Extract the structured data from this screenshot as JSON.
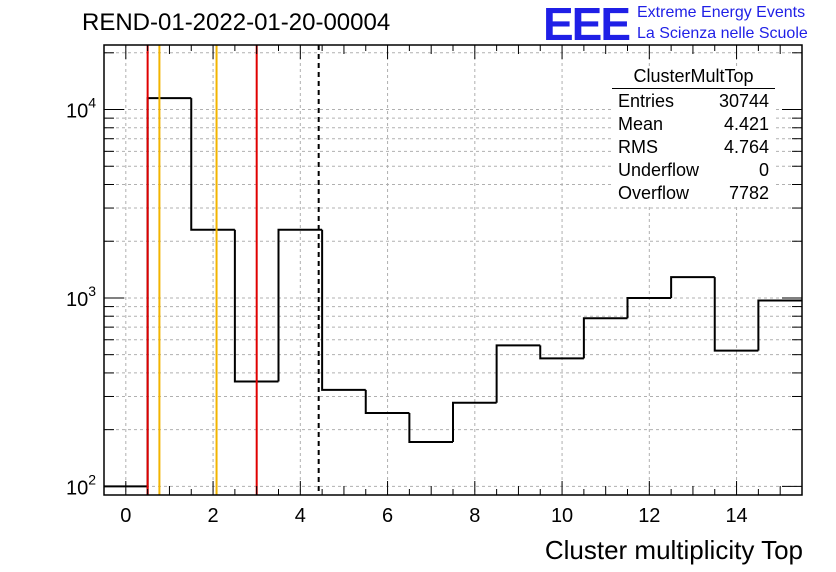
{
  "title": "REND-01-2022-01-20-00004",
  "logo": {
    "text": "EEE",
    "line1": "Extreme Energy Events",
    "line2": "La Scienza nelle Scuole"
  },
  "stats": {
    "name": "ClusterMultTop",
    "rows": [
      {
        "label": "Entries",
        "value": "30744"
      },
      {
        "label": "Mean",
        "value": "4.421"
      },
      {
        "label": "RMS",
        "value": "4.764"
      },
      {
        "label": "Underflow",
        "value": "0"
      },
      {
        "label": "Overflow",
        "value": "7782"
      }
    ]
  },
  "chart_data": {
    "type": "histogram",
    "title": "REND-01-2022-01-20-00004",
    "xlabel": "Cluster multiplicity Top",
    "ylabel": "",
    "xlim": [
      -0.5,
      15.5
    ],
    "ylim": [
      90,
      22000
    ],
    "y_scale": "log",
    "grid": true,
    "x_ticks": [
      "0",
      "2",
      "4",
      "6",
      "8",
      "10",
      "12",
      "14"
    ],
    "y_ticks": [
      {
        "value": 100,
        "base": "10",
        "exp": "2"
      },
      {
        "value": 1000,
        "base": "10",
        "exp": "3"
      },
      {
        "value": 10000,
        "base": "10",
        "exp": "4"
      }
    ],
    "bins": [
      {
        "lo": -0.5,
        "hi": 0.5,
        "value": 100
      },
      {
        "lo": 0.5,
        "hi": 1.5,
        "value": 11500
      },
      {
        "lo": 1.5,
        "hi": 2.5,
        "value": 2300
      },
      {
        "lo": 2.5,
        "hi": 3.5,
        "value": 360
      },
      {
        "lo": 3.5,
        "hi": 4.5,
        "value": 2300
      },
      {
        "lo": 4.5,
        "hi": 5.5,
        "value": 325
      },
      {
        "lo": 5.5,
        "hi": 6.5,
        "value": 245
      },
      {
        "lo": 6.5,
        "hi": 7.5,
        "value": 172
      },
      {
        "lo": 7.5,
        "hi": 8.5,
        "value": 278
      },
      {
        "lo": 8.5,
        "hi": 9.5,
        "value": 560
      },
      {
        "lo": 9.5,
        "hi": 10.5,
        "value": 478
      },
      {
        "lo": 10.5,
        "hi": 11.5,
        "value": 780
      },
      {
        "lo": 11.5,
        "hi": 12.5,
        "value": 1000
      },
      {
        "lo": 12.5,
        "hi": 13.5,
        "value": 1290
      },
      {
        "lo": 13.5,
        "hi": 14.5,
        "value": 525
      },
      {
        "lo": 14.5,
        "hi": 15.5,
        "value": 970
      }
    ],
    "vlines": [
      {
        "x": 0.5,
        "color": "#e00000",
        "style": "solid"
      },
      {
        "x": 0.77,
        "color": "#f2b400",
        "style": "solid"
      },
      {
        "x": 2.08,
        "color": "#f2b400",
        "style": "solid"
      },
      {
        "x": 3.0,
        "color": "#e00000",
        "style": "solid"
      },
      {
        "x": 4.421,
        "color": "#000000",
        "style": "dashed"
      }
    ]
  }
}
